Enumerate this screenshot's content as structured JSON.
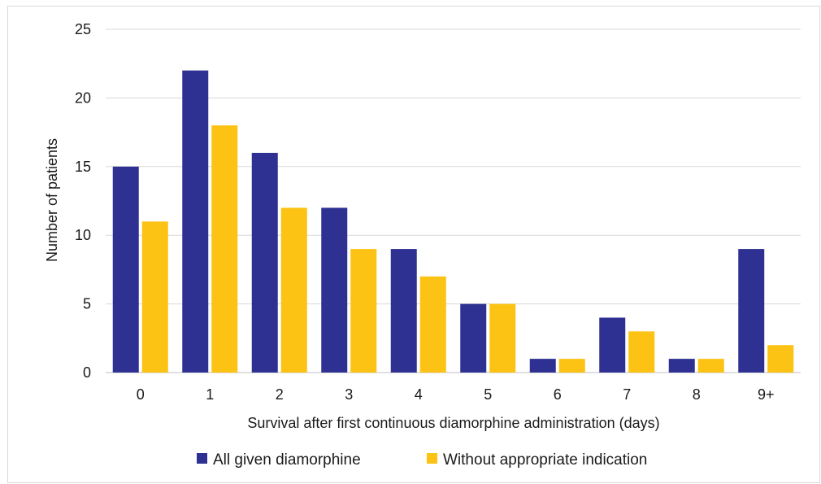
{
  "chart_data": {
    "type": "bar",
    "categories": [
      "0",
      "1",
      "2",
      "3",
      "4",
      "5",
      "6",
      "7",
      "8",
      "9+"
    ],
    "series": [
      {
        "name": "All given diamorphine",
        "color": "#2e3192",
        "values": [
          15,
          22,
          16,
          12,
          9,
          5,
          1,
          4,
          1,
          9
        ]
      },
      {
        "name": "Without appropriate indication",
        "color": "#fcc314",
        "values": [
          11,
          18,
          12,
          9,
          7,
          5,
          1,
          3,
          1,
          2
        ]
      }
    ],
    "title": "",
    "xlabel": "Survival after first continuous diamorphine administration (days)",
    "ylabel": "Number of patients",
    "ylim": [
      0,
      25
    ],
    "yticks": [
      "0",
      "5",
      "10",
      "15",
      "20",
      "25"
    ],
    "grid": "horizontal",
    "legend_position": "bottom"
  }
}
